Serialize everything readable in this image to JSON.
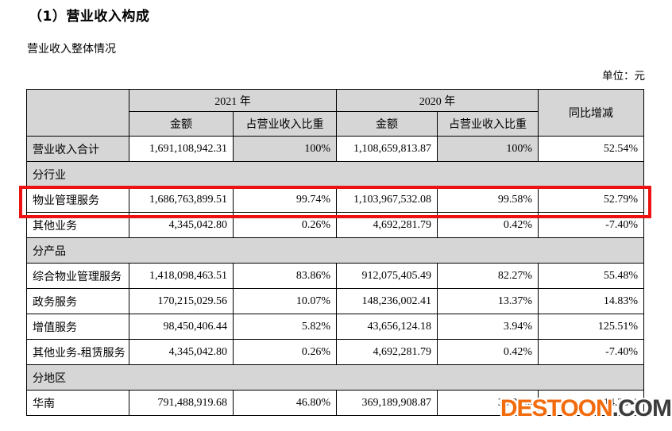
{
  "page": {
    "title": "（1）营业收入构成",
    "subtitle": "营业收入整体情况",
    "unit_label": "单位：元"
  },
  "table": {
    "header": {
      "year_2021": "2021 年",
      "year_2020": "2020 年",
      "yoy": "同比增减",
      "amount": "金额",
      "share": "占营业收入比重"
    },
    "rows": [
      {
        "type": "data",
        "label": "营业收入合计",
        "cells": [
          "1,691,108,942.31",
          "100%",
          "1,108,659,813.87",
          "100%",
          "52.54%"
        ],
        "label_shaded": true,
        "shaded_cells": [
          1,
          3
        ],
        "highlight": false
      },
      {
        "type": "section",
        "label": "分行业"
      },
      {
        "type": "data",
        "label": "物业管理服务",
        "cells": [
          "1,686,763,899.51",
          "99.74%",
          "1,103,967,532.08",
          "99.58%",
          "52.79%"
        ],
        "highlight": true
      },
      {
        "type": "data",
        "label": "其他业务",
        "cells": [
          "4,345,042.80",
          "0.26%",
          "4,692,281.79",
          "0.42%",
          "-7.40%"
        ]
      },
      {
        "type": "section",
        "label": "分产品"
      },
      {
        "type": "data",
        "label": "综合物业管理服务",
        "cells": [
          "1,418,098,463.51",
          "83.86%",
          "912,075,405.49",
          "82.27%",
          "55.48%"
        ]
      },
      {
        "type": "data",
        "label": "政务服务",
        "cells": [
          "170,215,029.56",
          "10.07%",
          "148,236,002.41",
          "13.37%",
          "14.83%"
        ]
      },
      {
        "type": "data",
        "label": "增值服务",
        "cells": [
          "98,450,406.44",
          "5.82%",
          "43,656,124.18",
          "3.94%",
          "125.51%"
        ]
      },
      {
        "type": "data",
        "label": "其他业务-租赁服务",
        "cells": [
          "4,345,042.80",
          "0.26%",
          "4,692,281.79",
          "0.42%",
          "-7.40%"
        ]
      },
      {
        "type": "section",
        "label": "分地区"
      },
      {
        "type": "data",
        "label": "华南",
        "cells": [
          "791,488,919.68",
          "46.80%",
          "369,189,908.87",
          "33.30%",
          "114.38%"
        ]
      }
    ]
  },
  "annotation": {
    "highlighted_row": "物业管理服务",
    "highlight_color": "#ec1212"
  },
  "watermark": {
    "brand": "DESTOON",
    "suffix": ".COM",
    "brand_color": "#f26c0d",
    "suffix_color": "#3d3d3d"
  },
  "colors": {
    "header_shade": "#d6d6d6",
    "border": "#000000"
  }
}
